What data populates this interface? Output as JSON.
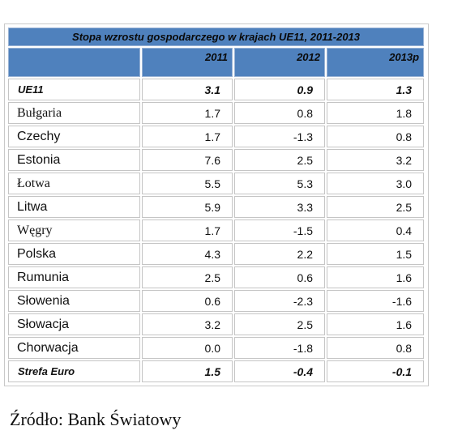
{
  "table": {
    "title": "Stopa wzrostu gospodarczego  w krajach UE11, 2011-2013",
    "headers": [
      "",
      "2011",
      "2012",
      "2013p"
    ],
    "rows": [
      {
        "name": "UE11",
        "v2011": "3.1",
        "v2012": "0.9",
        "v2013p": "1.3",
        "bold": true,
        "font": "sans"
      },
      {
        "name": "Bułgaria",
        "v2011": "1.7",
        "v2012": "0.8",
        "v2013p": "1.8",
        "bold": false,
        "font": "serif"
      },
      {
        "name": "Czechy",
        "v2011": "1.7",
        "v2012": "-1.3",
        "v2013p": "0.8",
        "bold": false,
        "font": "sans"
      },
      {
        "name": "Estonia",
        "v2011": "7.6",
        "v2012": "2.5",
        "v2013p": "3.2",
        "bold": false,
        "font": "sans"
      },
      {
        "name": "Łotwa",
        "v2011": "5.5",
        "v2012": "5.3",
        "v2013p": "3.0",
        "bold": false,
        "font": "serif"
      },
      {
        "name": "Litwa",
        "v2011": "5.9",
        "v2012": "3.3",
        "v2013p": "2.5",
        "bold": false,
        "font": "sans"
      },
      {
        "name": "Węgry",
        "v2011": "1.7",
        "v2012": "-1.5",
        "v2013p": "0.4",
        "bold": false,
        "font": "serif"
      },
      {
        "name": "Polska",
        "v2011": "4.3",
        "v2012": "2.2",
        "v2013p": "1.5",
        "bold": false,
        "font": "sans"
      },
      {
        "name": "Rumunia",
        "v2011": "2.5",
        "v2012": "0.6",
        "v2013p": "1.6",
        "bold": false,
        "font": "sans"
      },
      {
        "name": "Słowenia",
        "v2011": "0.6",
        "v2012": "-2.3",
        "v2013p": "-1.6",
        "bold": false,
        "font": "sans"
      },
      {
        "name": "Słowacja",
        "v2011": "3.2",
        "v2012": "2.5",
        "v2013p": "1.6",
        "bold": false,
        "font": "sans"
      },
      {
        "name": "Chorwacja",
        "v2011": "0.0",
        "v2012": "-1.8",
        "v2013p": "0.8",
        "bold": false,
        "font": "sans"
      },
      {
        "name": "Strefa Euro",
        "v2011": "1.5",
        "v2012": "-0.4",
        "v2013p": "-0.1",
        "bold": true,
        "font": "sans"
      }
    ]
  },
  "source": "Źródło: Bank Światowy"
}
